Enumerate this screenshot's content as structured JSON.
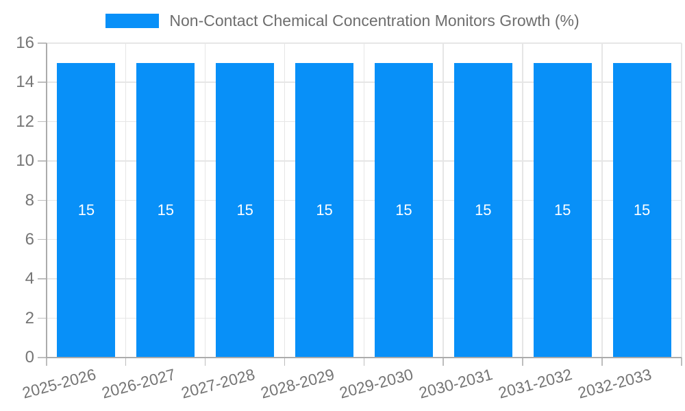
{
  "chart_data": {
    "type": "bar",
    "title": "Non-Contact Chemical Concentration Monitors Growth (%)",
    "xlabel": "",
    "ylabel": "",
    "categories": [
      "2025-2026",
      "2026-2027",
      "2027-2028",
      "2028-2029",
      "2029-2030",
      "2030-2031",
      "2031-2032",
      "2032-2033"
    ],
    "values": [
      15,
      15,
      15,
      15,
      15,
      15,
      15,
      15
    ],
    "value_labels": [
      "15",
      "15",
      "15",
      "15",
      "15",
      "15",
      "15",
      "15"
    ],
    "ylim": [
      0,
      16
    ],
    "yticks": [
      0,
      2,
      4,
      6,
      8,
      10,
      12,
      14,
      16
    ],
    "grid": true,
    "legend_position": "top",
    "colors": {
      "bar": "#0890F8",
      "grid": "#E6E6E6",
      "axis": "#ABABAB",
      "tick": "#BDBDBD",
      "axis_text": "#757575",
      "legend_text": "#6E6E6E",
      "value_text": "#FFFFFF"
    }
  },
  "legend": {
    "label": "Non-Contact Chemical Concentration Monitors Growth (%)"
  }
}
